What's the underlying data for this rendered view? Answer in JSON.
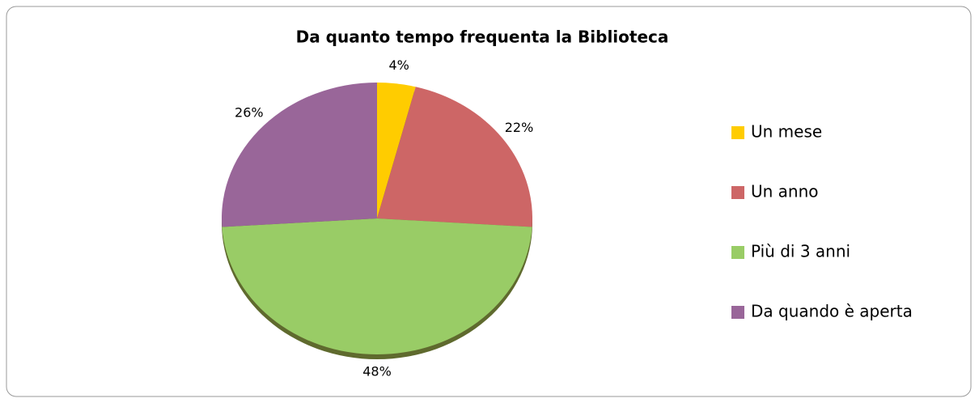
{
  "chart_data": {
    "type": "pie",
    "title": "Da quanto tempo frequenta la Biblioteca",
    "categories": [
      "Un mese",
      "Un anno",
      "Più di 3 anni",
      "Da quando è aperta"
    ],
    "values": [
      4,
      22,
      48,
      26
    ],
    "value_labels": [
      "4%",
      "22%",
      "48%",
      "26%"
    ],
    "colors": [
      "#ffcc00",
      "#cd6666",
      "#99cc66",
      "#996699"
    ],
    "legend": "right"
  }
}
